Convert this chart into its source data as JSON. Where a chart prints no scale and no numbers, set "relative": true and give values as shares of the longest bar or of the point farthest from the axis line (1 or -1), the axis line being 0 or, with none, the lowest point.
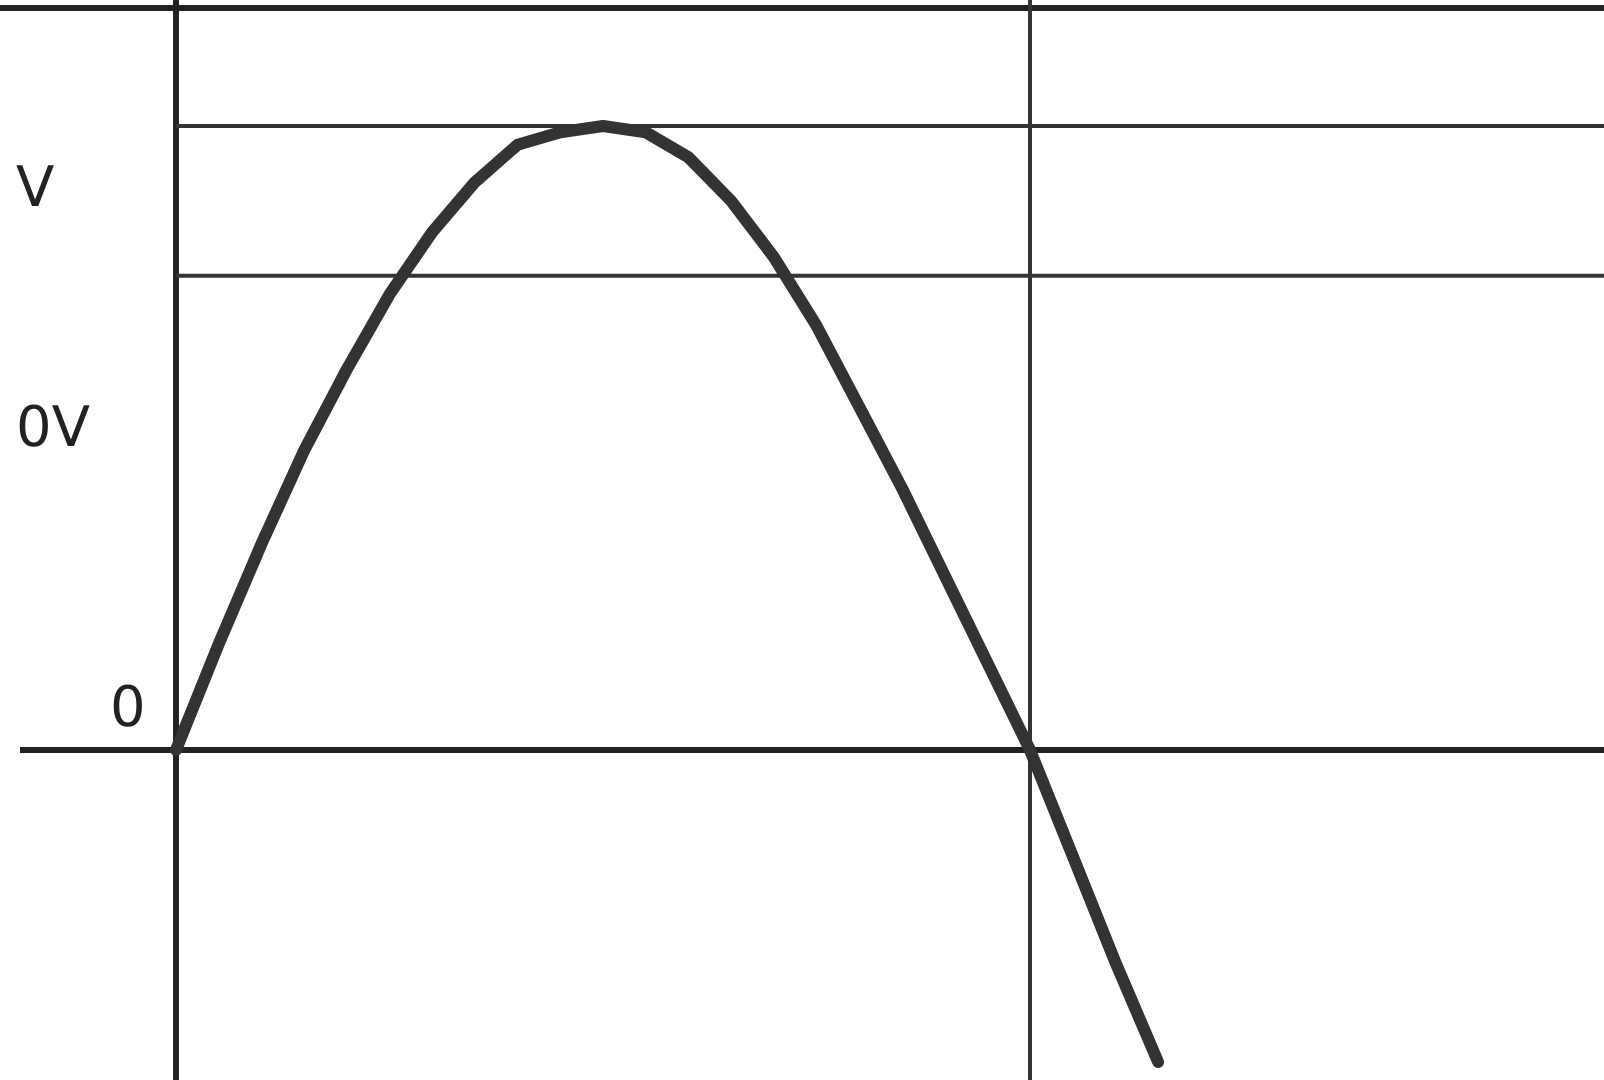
{
  "chart_data": {
    "type": "line",
    "relative": true,
    "categories": [
      null,
      null,
      null,
      null,
      null,
      null,
      null,
      null,
      null,
      null,
      null,
      null,
      null,
      null,
      null,
      null,
      null,
      null,
      null,
      null,
      null,
      null,
      null,
      null
    ],
    "series": [
      {
        "color": "#333333",
        "values": [
          0,
          0.17,
          0.33,
          0.48,
          0.61,
          0.73,
          0.83,
          0.91,
          0.97,
          0.99,
          1,
          0.99,
          0.95,
          0.88,
          0.79,
          0.68,
          0.55,
          0.42,
          0.28,
          0.14,
          0,
          -0.17,
          -0.34,
          -0.5
        ]
      }
    ],
    "ref_lines": [
      {
        "axis": "y",
        "value": 1,
        "color": "#333333"
      },
      {
        "axis": "y",
        "value": 0.76,
        "color": "#333333"
      }
    ],
    "annotations": [
      "V",
      "0V",
      "0"
    ],
    "marker": "none",
    "line_style": "solid",
    "grid": false
  }
}
